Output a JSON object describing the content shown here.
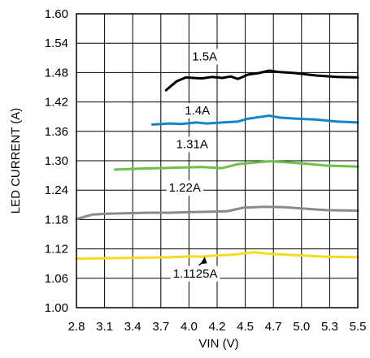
{
  "chart_data": {
    "type": "line",
    "xlabel": "VIN (V)",
    "ylabel": "LED CURRENT (A)",
    "xlim": [
      2.8,
      5.5
    ],
    "ylim": [
      1.0,
      1.6
    ],
    "x_ticks": [
      "2.8",
      "3.1",
      "3.4",
      "3.7",
      "4.0",
      "4.2",
      "4.5",
      "4.7",
      "5.0",
      "5.3",
      "5.5"
    ],
    "y_ticks": [
      "1.00",
      "1.06",
      "1.12",
      "1.18",
      "1.24",
      "1.30",
      "1.36",
      "1.42",
      "1.48",
      "1.54",
      "1.60"
    ],
    "grid": true,
    "series": [
      {
        "name": "1.5A",
        "color": "#000000",
        "points": [
          [
            3.66,
            1.444
          ],
          [
            3.76,
            1.462
          ],
          [
            3.85,
            1.47
          ],
          [
            4.0,
            1.468
          ],
          [
            4.1,
            1.471
          ],
          [
            4.2,
            1.469
          ],
          [
            4.28,
            1.472
          ],
          [
            4.35,
            1.467
          ],
          [
            4.45,
            1.476
          ],
          [
            4.55,
            1.479
          ],
          [
            4.65,
            1.484
          ],
          [
            4.75,
            1.481
          ],
          [
            4.9,
            1.479
          ],
          [
            5.1,
            1.474
          ],
          [
            5.3,
            1.471
          ],
          [
            5.5,
            1.47
          ]
        ]
      },
      {
        "name": "1.4A",
        "color": "#1585c8",
        "points": [
          [
            3.53,
            1.374
          ],
          [
            3.7,
            1.376
          ],
          [
            3.8,
            1.375
          ],
          [
            3.95,
            1.378
          ],
          [
            4.05,
            1.376
          ],
          [
            4.2,
            1.378
          ],
          [
            4.35,
            1.38
          ],
          [
            4.45,
            1.386
          ],
          [
            4.55,
            1.389
          ],
          [
            4.65,
            1.392
          ],
          [
            4.75,
            1.388
          ],
          [
            4.9,
            1.386
          ],
          [
            5.1,
            1.384
          ],
          [
            5.3,
            1.38
          ],
          [
            5.5,
            1.378
          ]
        ]
      },
      {
        "name": "1.31A",
        "color": "#6cc247",
        "points": [
          [
            3.17,
            1.282
          ],
          [
            3.4,
            1.284
          ],
          [
            3.6,
            1.285
          ],
          [
            3.8,
            1.286
          ],
          [
            4.0,
            1.287
          ],
          [
            4.2,
            1.285
          ],
          [
            4.35,
            1.293
          ],
          [
            4.5,
            1.296
          ],
          [
            4.65,
            1.299
          ],
          [
            4.8,
            1.297
          ],
          [
            5.0,
            1.294
          ],
          [
            5.2,
            1.29
          ],
          [
            5.5,
            1.288
          ]
        ]
      },
      {
        "name": "1.22A",
        "color": "#8a8a8a",
        "points": [
          [
            2.8,
            1.181
          ],
          [
            2.95,
            1.19
          ],
          [
            3.1,
            1.192
          ],
          [
            3.3,
            1.193
          ],
          [
            3.5,
            1.194
          ],
          [
            3.7,
            1.194
          ],
          [
            3.9,
            1.195
          ],
          [
            4.1,
            1.196
          ],
          [
            4.25,
            1.197
          ],
          [
            4.4,
            1.204
          ],
          [
            4.6,
            1.206
          ],
          [
            4.8,
            1.205
          ],
          [
            5.0,
            1.202
          ],
          [
            5.2,
            1.199
          ],
          [
            5.5,
            1.198
          ]
        ]
      },
      {
        "name": "1.1125A",
        "color": "#f5dc1f",
        "points": [
          [
            2.8,
            1.1
          ],
          [
            3.1,
            1.101
          ],
          [
            3.4,
            1.102
          ],
          [
            3.7,
            1.103
          ],
          [
            3.9,
            1.105
          ],
          [
            4.0,
            1.104
          ],
          [
            4.1,
            1.106
          ],
          [
            4.3,
            1.108
          ],
          [
            4.5,
            1.113
          ],
          [
            4.65,
            1.11
          ],
          [
            4.8,
            1.108
          ],
          [
            5.0,
            1.106
          ],
          [
            5.2,
            1.104
          ],
          [
            5.5,
            1.103
          ]
        ]
      }
    ],
    "annotations": [
      {
        "text": "1.5A",
        "x": 4.03,
        "y": 1.513
      },
      {
        "text": "1.4A",
        "x": 3.96,
        "y": 1.403
      },
      {
        "text": "1.31A",
        "x": 3.91,
        "y": 1.334
      },
      {
        "text": "1.22A",
        "x": 3.84,
        "y": 1.245
      },
      {
        "text": "1.1125A",
        "x": 3.94,
        "y": 1.07,
        "arrow_to": [
          4.03,
          1.104
        ]
      }
    ]
  }
}
